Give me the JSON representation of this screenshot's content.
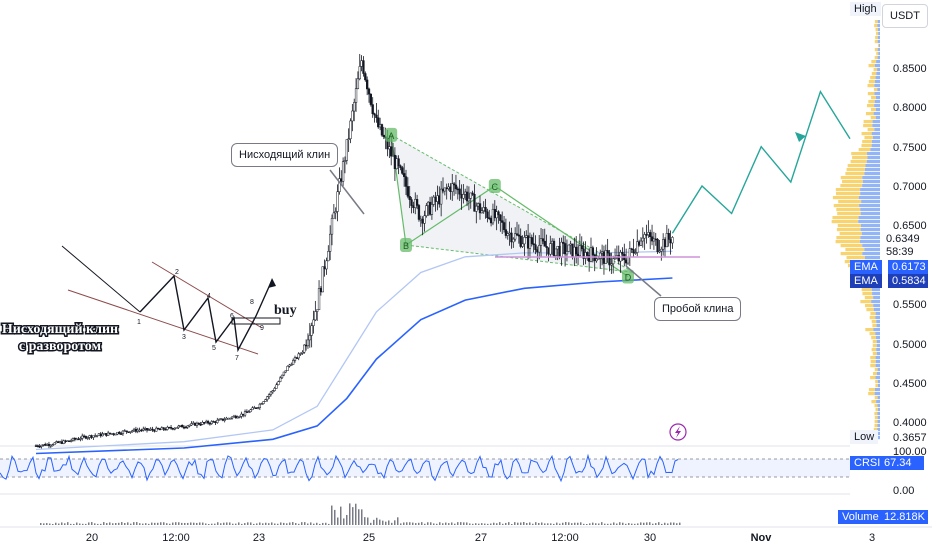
{
  "chart_data": {
    "type": "candlestick",
    "x_tick_labels": [
      "20",
      "12:00",
      "23",
      "25",
      "27",
      "12:00",
      "30",
      "Nov",
      "3"
    ],
    "y_tick_labels": [
      "0.8500",
      "0.8000",
      "0.7500",
      "0.7000",
      "0.6500",
      "0.5500",
      "0.5000",
      "0.4500",
      "0.4000"
    ],
    "currency": "USDT",
    "high_label": "High",
    "low_label": "Low",
    "low_value": "0.3657",
    "last_price": "0.6349",
    "countdown": "58:39",
    "ema_fast": {
      "name": "EMA",
      "value": "0.6173"
    },
    "ema_slow": {
      "name": "EMA",
      "value": "0.5834"
    },
    "price_path": [
      {
        "x": 0,
        "y": 0.37
      },
      {
        "x": 1,
        "y": 0.372
      },
      {
        "x": 2,
        "y": 0.375
      },
      {
        "x": 3,
        "y": 0.38
      },
      {
        "x": 4,
        "y": 0.383
      },
      {
        "x": 5,
        "y": 0.385
      },
      {
        "x": 6,
        "y": 0.388
      },
      {
        "x": 7,
        "y": 0.39
      },
      {
        "x": 8,
        "y": 0.39
      },
      {
        "x": 9,
        "y": 0.392
      },
      {
        "x": 10,
        "y": 0.395
      },
      {
        "x": 11,
        "y": 0.398
      },
      {
        "x": 12,
        "y": 0.4
      },
      {
        "x": 13,
        "y": 0.405
      },
      {
        "x": 14,
        "y": 0.41
      },
      {
        "x": 15,
        "y": 0.42
      },
      {
        "x": 16,
        "y": 0.44
      },
      {
        "x": 17,
        "y": 0.47
      },
      {
        "x": 18,
        "y": 0.49
      },
      {
        "x": 19,
        "y": 0.55
      },
      {
        "x": 20,
        "y": 0.65
      },
      {
        "x": 21,
        "y": 0.75
      },
      {
        "x": 22,
        "y": 0.86
      },
      {
        "x": 23,
        "y": 0.78
      },
      {
        "x": 24,
        "y": 0.74
      },
      {
        "x": 25,
        "y": 0.7
      },
      {
        "x": 26,
        "y": 0.66
      },
      {
        "x": 27,
        "y": 0.68
      },
      {
        "x": 28,
        "y": 0.7
      },
      {
        "x": 29,
        "y": 0.69
      },
      {
        "x": 30,
        "y": 0.67
      },
      {
        "x": 31,
        "y": 0.66
      },
      {
        "x": 32,
        "y": 0.64
      },
      {
        "x": 33,
        "y": 0.63
      },
      {
        "x": 34,
        "y": 0.625
      },
      {
        "x": 35,
        "y": 0.62
      },
      {
        "x": 36,
        "y": 0.618
      },
      {
        "x": 37,
        "y": 0.615
      },
      {
        "x": 38,
        "y": 0.612
      },
      {
        "x": 39,
        "y": 0.605
      },
      {
        "x": 40,
        "y": 0.61
      },
      {
        "x": 41,
        "y": 0.64
      },
      {
        "x": 42,
        "y": 0.625
      },
      {
        "x": 43,
        "y": 0.635
      }
    ],
    "ema_fast_path": [
      {
        "x": 0,
        "y": 0.365
      },
      {
        "x": 10,
        "y": 0.375
      },
      {
        "x": 16,
        "y": 0.39
      },
      {
        "x": 19,
        "y": 0.42
      },
      {
        "x": 21,
        "y": 0.48
      },
      {
        "x": 23,
        "y": 0.54
      },
      {
        "x": 26,
        "y": 0.59
      },
      {
        "x": 29,
        "y": 0.61
      },
      {
        "x": 33,
        "y": 0.615
      },
      {
        "x": 38,
        "y": 0.615
      },
      {
        "x": 43,
        "y": 0.617
      }
    ],
    "ema_slow_path": [
      {
        "x": 0,
        "y": 0.36
      },
      {
        "x": 10,
        "y": 0.367
      },
      {
        "x": 16,
        "y": 0.378
      },
      {
        "x": 19,
        "y": 0.395
      },
      {
        "x": 21,
        "y": 0.43
      },
      {
        "x": 23,
        "y": 0.48
      },
      {
        "x": 26,
        "y": 0.53
      },
      {
        "x": 29,
        "y": 0.555
      },
      {
        "x": 33,
        "y": 0.57
      },
      {
        "x": 38,
        "y": 0.578
      },
      {
        "x": 43,
        "y": 0.583
      }
    ],
    "projection_path": [
      {
        "x": 43,
        "y": 0.64
      },
      {
        "x": 45,
        "y": 0.7
      },
      {
        "x": 47,
        "y": 0.665
      },
      {
        "x": 49,
        "y": 0.75
      },
      {
        "x": 51,
        "y": 0.705
      },
      {
        "x": 53,
        "y": 0.82
      },
      {
        "x": 55,
        "y": 0.76
      }
    ],
    "wedge_points": [
      {
        "label": "A",
        "x": 24,
        "y": 0.765
      },
      {
        "label": "B",
        "x": 25,
        "y": 0.625
      },
      {
        "label": "C",
        "x": 31,
        "y": 0.7
      },
      {
        "label": "D",
        "x": 40,
        "y": 0.585
      }
    ],
    "crsi": {
      "name": "CRSI",
      "value": "67.34",
      "scale_max": "100.00",
      "scale_min": "0.00"
    },
    "volume": {
      "name": "Volume",
      "value": "12.818K"
    }
  },
  "annotations": {
    "wedge_label": "Нисходящий клин",
    "breakout_label": "Пробой клина",
    "pattern_title_line1": "Нисходящий клин",
    "pattern_title_line2": "с разворотом",
    "buy_label": "buy",
    "pattern_point_labels": [
      "1",
      "2",
      "3",
      "4",
      "5",
      "6",
      "7",
      "8",
      "9"
    ]
  },
  "colors": {
    "candles": "#131722",
    "ema_fast": "#b2c7f5",
    "ema_slow": "#2962ff",
    "projection": "#26a69a",
    "wedge_markers": "#66bb6a",
    "breakout_line": "#ce93d8",
    "profile_blue": "#5b8def",
    "profile_yellow": "#f5c542",
    "crsi_line": "#2962ff"
  },
  "icons": {
    "flash": "lightning-icon"
  }
}
